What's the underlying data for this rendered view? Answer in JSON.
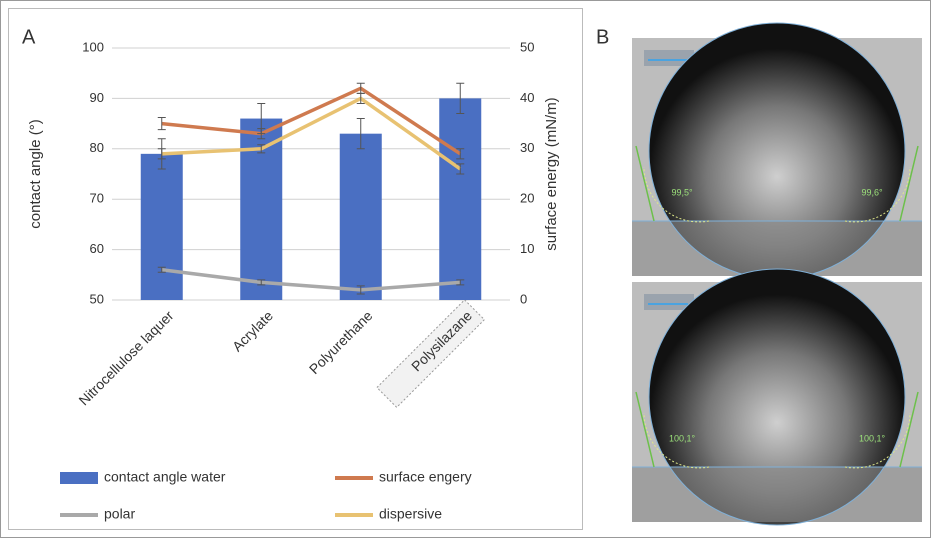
{
  "panel_labels": [
    "A",
    "B"
  ],
  "chart_data": {
    "type": "bar",
    "categories": [
      "Nitrocellulose laquer",
      "Acrylate",
      "Polyurethane",
      "Polysilazane"
    ],
    "ylabel": "contact angle (°)",
    "y2label": "surface energy (mN/m)",
    "ylim": [
      50,
      100
    ],
    "yticks": [
      50,
      60,
      70,
      80,
      90,
      100
    ],
    "y2lim": [
      0,
      50
    ],
    "y2ticks": [
      0,
      10,
      20,
      30,
      40,
      50
    ],
    "grid": true,
    "legend": "bottom",
    "series": [
      {
        "name": "contact angle water",
        "type": "bar",
        "color": "#4a6fc2",
        "values": [
          79,
          86,
          83,
          90
        ],
        "errors": [
          3,
          3,
          3,
          3
        ]
      },
      {
        "name": "surface engery",
        "type": "line",
        "axis": "y2",
        "color": "#cf7a4f",
        "values": [
          35,
          33,
          42,
          29
        ],
        "errors": [
          1.2,
          1,
          1,
          1
        ]
      },
      {
        "name": "polar",
        "type": "line",
        "axis": "y2",
        "color": "#a9a9a9",
        "values": [
          6,
          3.5,
          2,
          3.5
        ],
        "errors": [
          0.5,
          0.5,
          0.8,
          0.5
        ]
      },
      {
        "name": "dispersive",
        "type": "line",
        "axis": "y2",
        "color": "#e8c272",
        "values": [
          29,
          30,
          40,
          26
        ],
        "errors": [
          1,
          0.8,
          1,
          1
        ]
      }
    ]
  },
  "images": [
    {
      "angles": [
        "99,5°",
        "99,6°"
      ]
    },
    {
      "angles": [
        "100,1°",
        "100,1°"
      ]
    }
  ]
}
